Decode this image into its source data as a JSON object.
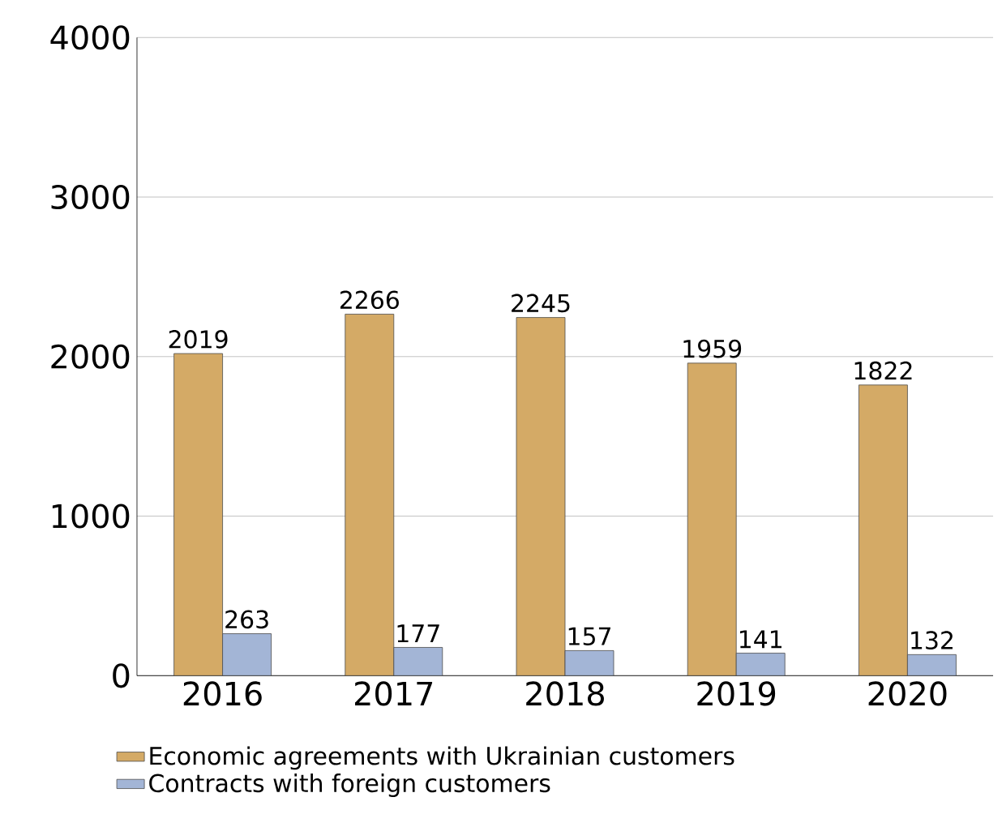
{
  "chart_data": {
    "type": "bar",
    "categories": [
      "2016",
      "2017",
      "2018",
      "2019",
      "2020"
    ],
    "series": [
      {
        "name": "Economic agreements with Ukrainian customers",
        "color": "#d4aa66",
        "values": [
          2019,
          2266,
          2245,
          1959,
          1822
        ]
      },
      {
        "name": "Contracts with foreign customers",
        "color": "#a3b5d6",
        "values": [
          263,
          177,
          157,
          141,
          132
        ]
      }
    ],
    "ylim": [
      0,
      4000
    ],
    "yticks": [
      0,
      1000,
      2000,
      3000,
      4000
    ],
    "grid": "y",
    "legend": "bottom",
    "data_labels": true
  }
}
